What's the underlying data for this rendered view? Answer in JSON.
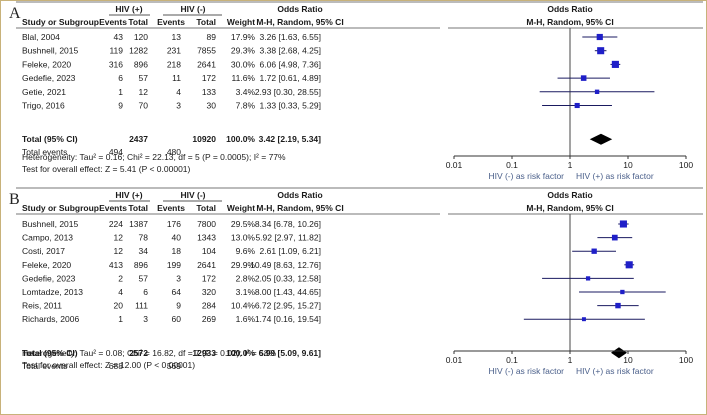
{
  "chart_data": [
    {
      "type": "forest",
      "panel": "A",
      "headers": {
        "group1": "HIV (+)",
        "group2": "HIV (-)",
        "study": "Study or Subgroup",
        "events": "Events",
        "total": "Total",
        "weight": "Weight",
        "or_title": "Odds Ratio",
        "or_method": "M-H, Random, 95% CI",
        "plot_title": "Odds Ratio",
        "plot_method": "M-H, Random, 95% CI"
      },
      "studies": [
        {
          "name": "Blal, 2004",
          "e1": "43",
          "t1": "120",
          "e2": "13",
          "t2": "89",
          "weight": "17.9%",
          "ci_text": "3.26 [1.63, 6.55]",
          "or": 3.26,
          "lo": 1.63,
          "hi": 6.55
        },
        {
          "name": "Bushnell, 2015",
          "e1": "119",
          "t1": "1282",
          "e2": "231",
          "t2": "7855",
          "weight": "29.3%",
          "ci_text": "3.38 [2.68, 4.25]",
          "or": 3.38,
          "lo": 2.68,
          "hi": 4.25
        },
        {
          "name": "Feleke, 2020",
          "e1": "316",
          "t1": "896",
          "e2": "218",
          "t2": "2641",
          "weight": "30.0%",
          "ci_text": "6.06 [4.98, 7.36]",
          "or": 6.06,
          "lo": 4.98,
          "hi": 7.36
        },
        {
          "name": "Gedefie, 2023",
          "e1": "6",
          "t1": "57",
          "e2": "11",
          "t2": "172",
          "weight": "11.6%",
          "ci_text": "1.72 [0.61, 4.89]",
          "or": 1.72,
          "lo": 0.61,
          "hi": 4.89
        },
        {
          "name": "Getie, 2021",
          "e1": "1",
          "t1": "12",
          "e2": "4",
          "t2": "133",
          "weight": "3.4%",
          "ci_text": "2.93 [0.30, 28.55]",
          "or": 2.93,
          "lo": 0.3,
          "hi": 28.55
        },
        {
          "name": "Trigo, 2016",
          "e1": "9",
          "t1": "70",
          "e2": "3",
          "t2": "30",
          "weight": "7.8%",
          "ci_text": "1.33 [0.33, 5.29]",
          "or": 1.33,
          "lo": 0.33,
          "hi": 5.29
        }
      ],
      "total": {
        "label": "Total (95% CI)",
        "t1": "2437",
        "t2": "10920",
        "weight": "100.0%",
        "ci_text": "3.42 [2.19, 5.34]",
        "or": 3.42,
        "lo": 2.19,
        "hi": 5.34
      },
      "total_events": {
        "label": "Total events",
        "e1": "494",
        "e2": "480"
      },
      "heterogeneity": "Heterogeneity: Tau² = 0.16; Chi² = 22.13, df = 5 (P = 0.0005); I² = 77%",
      "overall_effect": "Test for overall effect: Z = 5.41 (P < 0.00001)",
      "axis": {
        "scale": "log",
        "ticks": [
          0.01,
          0.1,
          1,
          10,
          100
        ],
        "tick_labels": [
          "0.01",
          "0.1",
          "1",
          "10",
          "100"
        ],
        "left_label": "HIV (-) as risk factor",
        "right_label": "HIV (+) as risk factor"
      }
    },
    {
      "type": "forest",
      "panel": "B",
      "headers": {
        "group1": "HIV (+)",
        "group2": "HIV (-)",
        "study": "Study or Subgroup",
        "events": "Events",
        "total": "Total",
        "weight": "Weight",
        "or_title": "Odds Ratio",
        "or_method": "M-H, Random, 95% CI",
        "plot_title": "Odds Ratio",
        "plot_method": "M-H, Random, 95% CI"
      },
      "studies": [
        {
          "name": "Bushnell, 2015",
          "e1": "224",
          "t1": "1387",
          "e2": "176",
          "t2": "7800",
          "weight": "29.5%",
          "ci_text": "8.34 [6.78, 10.26]",
          "or": 8.34,
          "lo": 6.78,
          "hi": 10.26
        },
        {
          "name": "Campo, 2013",
          "e1": "12",
          "t1": "78",
          "e2": "40",
          "t2": "1343",
          "weight": "13.0%",
          "ci_text": "5.92 [2.97, 11.82]",
          "or": 5.92,
          "lo": 2.97,
          "hi": 11.82
        },
        {
          "name": "Costi, 2017",
          "e1": "12",
          "t1": "34",
          "e2": "18",
          "t2": "104",
          "weight": "9.6%",
          "ci_text": "2.61 [1.09, 6.21]",
          "or": 2.61,
          "lo": 1.09,
          "hi": 6.21
        },
        {
          "name": "Feleke, 2020",
          "e1": "413",
          "t1": "896",
          "e2": "199",
          "t2": "2641",
          "weight": "29.9%",
          "ci_text": "10.49 [8.63, 12.76]",
          "or": 10.49,
          "lo": 8.63,
          "hi": 12.76
        },
        {
          "name": "Gedefie, 2023",
          "e1": "2",
          "t1": "57",
          "e2": "3",
          "t2": "172",
          "weight": "2.8%",
          "ci_text": "2.05 [0.33, 12.58]",
          "or": 2.05,
          "lo": 0.33,
          "hi": 12.58
        },
        {
          "name": "Lomtadze, 2013",
          "e1": "4",
          "t1": "6",
          "e2": "64",
          "t2": "320",
          "weight": "3.1%",
          "ci_text": "8.00 [1.43, 44.65]",
          "or": 8.0,
          "lo": 1.43,
          "hi": 44.65
        },
        {
          "name": "Reis, 2011",
          "e1": "20",
          "t1": "111",
          "e2": "9",
          "t2": "284",
          "weight": "10.4%",
          "ci_text": "6.72 [2.95, 15.27]",
          "or": 6.72,
          "lo": 2.95,
          "hi": 15.27
        },
        {
          "name": "Richards, 2006",
          "e1": "1",
          "t1": "3",
          "e2": "60",
          "t2": "269",
          "weight": "1.6%",
          "ci_text": "1.74 [0.16, 19.54]",
          "or": 1.74,
          "lo": 0.16,
          "hi": 19.54
        }
      ],
      "total": {
        "label": "Total (95% CI)",
        "t1": "2572",
        "t2": "12933",
        "weight": "100.0%",
        "ci_text": "6.99 [5.09, 9.61]",
        "or": 6.99,
        "lo": 5.09,
        "hi": 9.61
      },
      "total_events": {
        "label": "Total events",
        "e1": "688",
        "e2": "569"
      },
      "heterogeneity": "Heterogeneity: Tau² = 0.08; Chi² = 16.82, df = 7 (P = 0.02); I² = 58%",
      "overall_effect": "Test for overall effect: Z = 12.00 (P < 0.00001)",
      "axis": {
        "scale": "log",
        "ticks": [
          0.01,
          0.1,
          1,
          10,
          100
        ],
        "tick_labels": [
          "0.01",
          "0.1",
          "1",
          "10",
          "100"
        ],
        "left_label": "HIV (-) as risk factor",
        "right_label": "HIV (+) as risk factor"
      }
    }
  ],
  "colors": {
    "square": "#1f1fc8",
    "diamond": "#000000",
    "ci_line": "#1a1a60",
    "rule": "#555555",
    "axis_label": "#4a5f8a",
    "frame": "#c8b27a"
  }
}
